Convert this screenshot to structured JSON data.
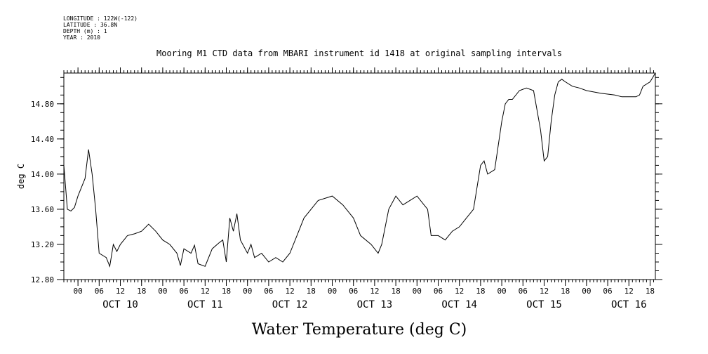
{
  "meta": {
    "longitude": "LONGITUDE : 122W(-122)",
    "latitude": "LATITUDE : 36.8N",
    "depth": "DEPTH (m) : 1",
    "year": "YEAR : 2010"
  },
  "chart_data": {
    "type": "line",
    "title": "Mooring M1 CTD data from MBARI instrument id 1418 at original sampling intervals",
    "xlabel": "Water Temperature (deg C)",
    "ylabel": "deg C",
    "xlim": [
      "2010-10-09T20:00",
      "2010-10-16T19:30"
    ],
    "ylim": [
      12.8,
      15.15
    ],
    "y_ticks": [
      "12.80",
      "13.20",
      "13.60",
      "14.00",
      "14.40",
      "14.80"
    ],
    "x_hour_ticks": [
      "00",
      "06",
      "12",
      "18",
      "00",
      "06",
      "12",
      "18",
      "00",
      "06",
      "12",
      "18",
      "00",
      "06",
      "12",
      "18",
      "00",
      "06",
      "12",
      "18",
      "00",
      "06",
      "12",
      "18",
      "00",
      "06",
      "12",
      "18"
    ],
    "x_day_labels": [
      "OCT 10",
      "OCT 11",
      "OCT 12",
      "OCT 13",
      "OCT 14",
      "OCT 15",
      "OCT 16"
    ],
    "grid": false,
    "series": [
      {
        "x": [
          "2010-10-09T20:00",
          "2010-10-09T21:00",
          "2010-10-09T22:00",
          "2010-10-09T23:00",
          "2010-10-10T00:00",
          "2010-10-10T02:00",
          "2010-10-10T03:00",
          "2010-10-10T04:00",
          "2010-10-10T05:00",
          "2010-10-10T06:00",
          "2010-10-10T08:00",
          "2010-10-10T09:00",
          "2010-10-10T10:00",
          "2010-10-10T11:00",
          "2010-10-10T12:00",
          "2010-10-10T14:00",
          "2010-10-10T16:00",
          "2010-10-10T18:00",
          "2010-10-10T20:00",
          "2010-10-10T22:00",
          "2010-10-11T00:00",
          "2010-10-11T02:00",
          "2010-10-11T04:00",
          "2010-10-11T05:00",
          "2010-10-11T06:00",
          "2010-10-11T08:00",
          "2010-10-11T09:00",
          "2010-10-11T10:00",
          "2010-10-11T12:00",
          "2010-10-11T14:00",
          "2010-10-11T16:00",
          "2010-10-11T17:00",
          "2010-10-11T18:00",
          "2010-10-11T19:00",
          "2010-10-11T20:00",
          "2010-10-11T21:00",
          "2010-10-11T22:00",
          "2010-10-12T00:00",
          "2010-10-12T01:00",
          "2010-10-12T02:00",
          "2010-10-12T04:00",
          "2010-10-12T06:00",
          "2010-10-12T08:00",
          "2010-10-12T10:00",
          "2010-10-12T12:00",
          "2010-10-12T14:00",
          "2010-10-12T16:00",
          "2010-10-12T18:00",
          "2010-10-12T20:00",
          "2010-10-13T00:00",
          "2010-10-13T03:00",
          "2010-10-13T06:00",
          "2010-10-13T08:00",
          "2010-10-13T11:00",
          "2010-10-13T13:00",
          "2010-10-13T14:00",
          "2010-10-13T16:00",
          "2010-10-13T18:00",
          "2010-10-13T20:00",
          "2010-10-13T22:00",
          "2010-10-14T00:00",
          "2010-10-14T02:00",
          "2010-10-14T03:00",
          "2010-10-14T04:00",
          "2010-10-14T06:00",
          "2010-10-14T08:00",
          "2010-10-14T10:00",
          "2010-10-14T12:00",
          "2010-10-14T14:00",
          "2010-10-14T16:00",
          "2010-10-14T18:00",
          "2010-10-14T19:00",
          "2010-10-14T20:00",
          "2010-10-14T22:00",
          "2010-10-15T00:00",
          "2010-10-15T01:00",
          "2010-10-15T02:00",
          "2010-10-15T03:00",
          "2010-10-15T05:00",
          "2010-10-15T07:00",
          "2010-10-15T09:00",
          "2010-10-15T11:00",
          "2010-10-15T12:00",
          "2010-10-15T13:00",
          "2010-10-15T14:00",
          "2010-10-15T15:00",
          "2010-10-15T16:00",
          "2010-10-15T17:00",
          "2010-10-15T18:00",
          "2010-10-15T20:00",
          "2010-10-15T22:00",
          "2010-10-16T00:00",
          "2010-10-16T04:00",
          "2010-10-16T08:00",
          "2010-10-16T10:00",
          "2010-10-16T14:00",
          "2010-10-16T15:00",
          "2010-10-16T16:00",
          "2010-10-16T18:00",
          "2010-10-16T19:30"
        ],
        "y": [
          14.1,
          13.6,
          13.58,
          13.62,
          13.75,
          13.95,
          14.28,
          14.0,
          13.6,
          13.1,
          13.05,
          12.95,
          13.2,
          13.12,
          13.2,
          13.3,
          13.32,
          13.35,
          13.43,
          13.35,
          13.25,
          13.2,
          13.1,
          12.96,
          13.15,
          13.1,
          13.19,
          12.98,
          12.95,
          13.15,
          13.22,
          13.25,
          13.0,
          13.5,
          13.35,
          13.55,
          13.25,
          13.1,
          13.2,
          13.05,
          13.1,
          13.0,
          13.05,
          13.0,
          13.1,
          13.3,
          13.5,
          13.6,
          13.7,
          13.75,
          13.65,
          13.5,
          13.3,
          13.2,
          13.1,
          13.2,
          13.6,
          13.75,
          13.65,
          13.7,
          13.75,
          13.65,
          13.6,
          13.3,
          13.3,
          13.25,
          13.35,
          13.4,
          13.5,
          13.6,
          14.1,
          14.15,
          14.0,
          14.05,
          14.6,
          14.8,
          14.85,
          14.85,
          14.95,
          14.98,
          14.95,
          14.5,
          14.15,
          14.2,
          14.6,
          14.9,
          15.05,
          15.08,
          15.05,
          15.0,
          14.98,
          14.95,
          14.92,
          14.9,
          14.88,
          14.88,
          14.9,
          15.0,
          15.05,
          15.15
        ]
      }
    ]
  }
}
